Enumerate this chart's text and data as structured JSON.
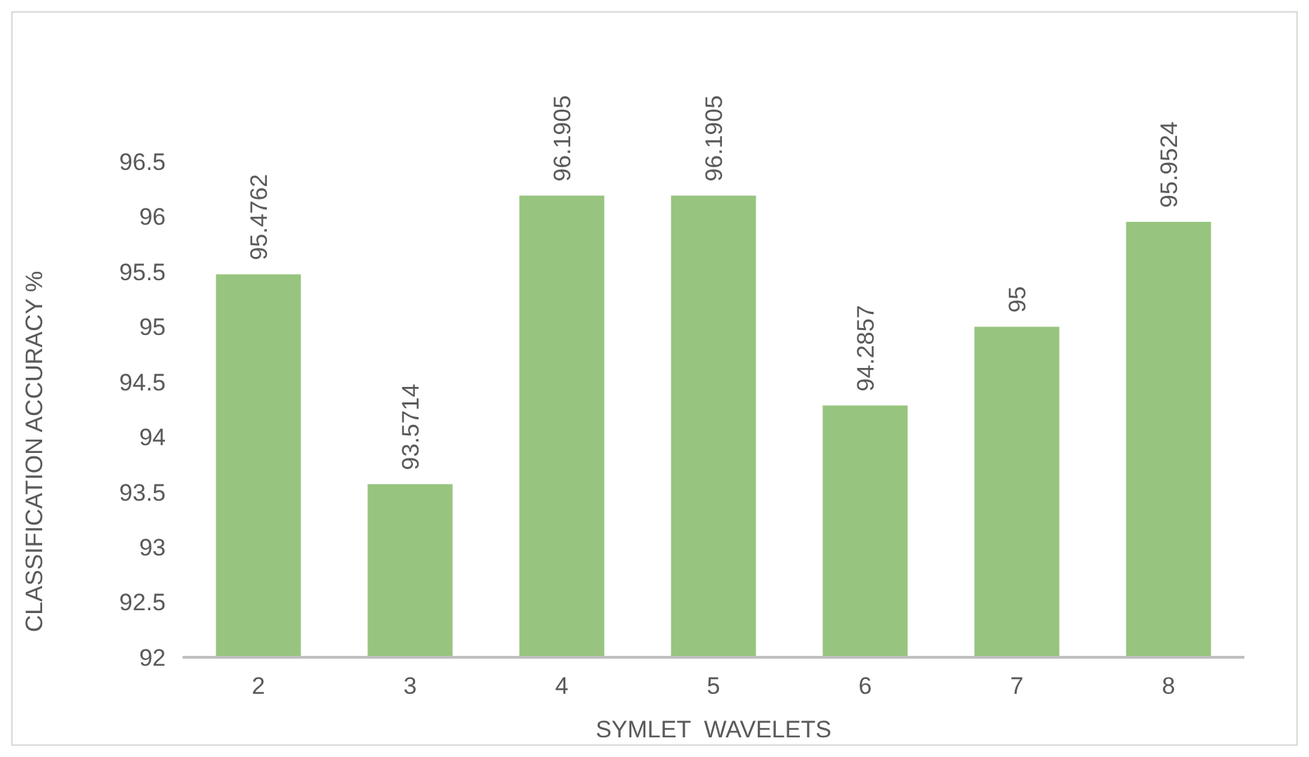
{
  "chart_data": {
    "type": "bar",
    "xlabel": "SYMLET  WAVELETS",
    "ylabel": "CLASSIFICATION ACCURACY %",
    "categories": [
      "2",
      "3",
      "4",
      "5",
      "6",
      "7",
      "8"
    ],
    "values": [
      95.4762,
      93.5714,
      96.1905,
      96.1905,
      94.2857,
      95,
      95.9524
    ],
    "color": "#97c47e",
    "ylim": [
      92,
      96.5
    ],
    "yticks": [
      92,
      92.5,
      93,
      93.5,
      94,
      94.5,
      95,
      95.5,
      96,
      96.5
    ],
    "data_labels": true
  }
}
